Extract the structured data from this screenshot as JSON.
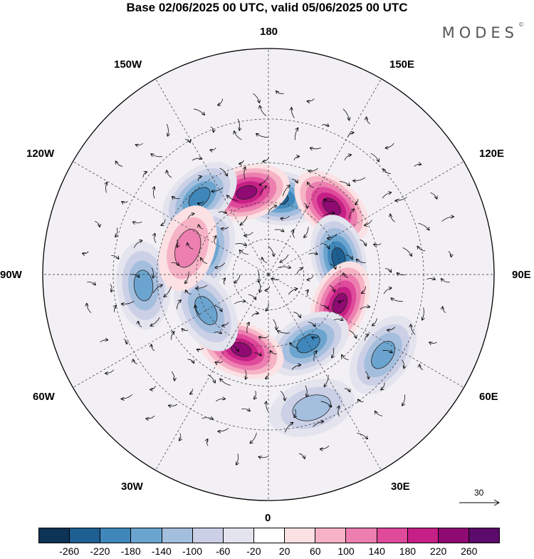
{
  "title": "Base 02/06/2025 00 UTC, valid 05/06/2025 00 UTC",
  "logo": {
    "text": "MODES",
    "mark": "©"
  },
  "longitude_labels": {
    "lon_180": "180",
    "lon_150e": "150E",
    "lon_120e": "120E",
    "lon_90e": "90E",
    "lon_60e": "60E",
    "lon_30e": "30E",
    "lon_0": "0",
    "lon_30w": "30W",
    "lon_60w": "60W",
    "lon_90w": "90W",
    "lon_120w": "120W",
    "lon_150w": "150W"
  },
  "reference_vector": {
    "value": "30"
  },
  "colorbar": {
    "tick_labels": [
      "-260",
      "-220",
      "-180",
      "-140",
      "-100",
      "-60",
      "-20",
      "20",
      "60",
      "100",
      "140",
      "180",
      "220",
      "260"
    ],
    "colors": [
      "#0d3355",
      "#1e5f91",
      "#3f87bb",
      "#6ba5cf",
      "#a4bede",
      "#cbd0e6",
      "#e4e4ee",
      "#ffffff",
      "#fbe1e3",
      "#f6b3c5",
      "#ec7fb0",
      "#df4a9b",
      "#c61f86",
      "#8f0a72",
      "#5c0a6b"
    ]
  },
  "map": {
    "projection": "north-polar-stereographic",
    "anomalies": [
      {
        "id": "neg-n",
        "lon": 173,
        "lat": 58,
        "sign": -1,
        "level": 4
      },
      {
        "id": "pos-n",
        "lon": 195,
        "lat": 55,
        "sign": 1,
        "level": 4
      },
      {
        "id": "pos-nw",
        "lon": 137,
        "lat": 52,
        "sign": 1,
        "level": 4
      },
      {
        "id": "neg-nne",
        "lon": 222,
        "lat": 48,
        "sign": -1,
        "level": 3
      },
      {
        "id": "neg-w",
        "lon": 103,
        "lat": 60,
        "sign": -1,
        "level": 4
      },
      {
        "id": "pos-sw",
        "lon": 68,
        "lat": 58,
        "sign": 1,
        "level": 4
      },
      {
        "id": "neg-ssw",
        "lon": 30,
        "lat": 57,
        "sign": -1,
        "level": 3
      },
      {
        "id": "pos-s",
        "lon": 340,
        "lat": 57,
        "sign": 1,
        "level": 4
      },
      {
        "id": "neg-e",
        "lon": 250,
        "lat": 62,
        "sign": -1,
        "level": 3
      },
      {
        "id": "neg-se",
        "lon": 300,
        "lat": 60,
        "sign": -1,
        "level": 2
      },
      {
        "id": "neg-far-e",
        "lon": 275,
        "lat": 40,
        "sign": -1,
        "level": 2
      },
      {
        "id": "pos-ne",
        "lon": 252,
        "lat": 55,
        "sign": 1,
        "level": 1
      },
      {
        "id": "neg-far-sw",
        "lon": 55,
        "lat": 35,
        "sign": -1,
        "level": 2
      },
      {
        "id": "neg-ssw2",
        "lon": 18,
        "lat": 35,
        "sign": -1,
        "level": 1
      }
    ]
  }
}
